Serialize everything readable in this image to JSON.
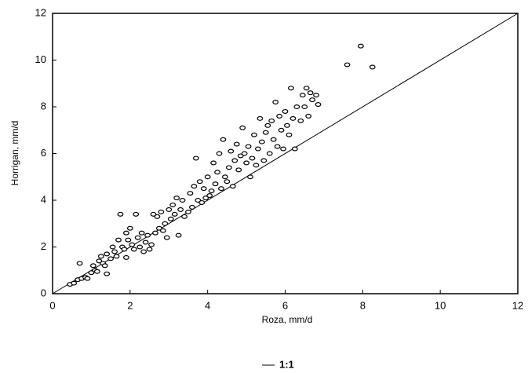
{
  "chart_data": {
    "type": "scatter",
    "x_label": "Roza, mm/d",
    "y_label": "Horrigan, mm/d",
    "xlim": [
      0,
      12
    ],
    "ylim": [
      0,
      12
    ],
    "xticks": [
      0,
      2,
      4,
      6,
      8,
      10,
      12
    ],
    "yticks": [
      0,
      2,
      4,
      6,
      8,
      10,
      12
    ],
    "points": {
      "color": "#000000",
      "x": [
        0.45,
        0.55,
        0.65,
        0.7,
        0.75,
        0.85,
        0.9,
        1.0,
        1.05,
        1.1,
        1.15,
        1.2,
        1.25,
        1.3,
        1.35,
        1.4,
        1.4,
        1.5,
        1.55,
        1.6,
        1.65,
        1.7,
        1.75,
        1.8,
        1.85,
        1.9,
        1.9,
        1.95,
        2.0,
        2.05,
        2.1,
        2.15,
        2.2,
        2.25,
        2.3,
        2.35,
        2.4,
        2.45,
        2.5,
        2.55,
        2.6,
        2.65,
        2.7,
        2.75,
        2.8,
        2.85,
        2.9,
        2.95,
        3.0,
        3.05,
        3.1,
        3.15,
        3.2,
        3.25,
        3.3,
        3.35,
        3.4,
        3.5,
        3.55,
        3.6,
        3.65,
        3.7,
        3.75,
        3.8,
        3.85,
        3.9,
        3.95,
        4.0,
        4.05,
        4.1,
        4.15,
        4.2,
        4.25,
        4.3,
        4.35,
        4.4,
        4.45,
        4.5,
        4.55,
        4.6,
        4.65,
        4.7,
        4.75,
        4.8,
        4.85,
        4.9,
        4.95,
        5.0,
        5.05,
        5.1,
        5.15,
        5.2,
        5.25,
        5.3,
        5.35,
        5.4,
        5.45,
        5.5,
        5.55,
        5.6,
        5.65,
        5.7,
        5.75,
        5.8,
        5.85,
        5.9,
        5.95,
        6.0,
        6.05,
        6.1,
        6.15,
        6.2,
        6.25,
        6.3,
        6.4,
        6.45,
        6.5,
        6.55,
        6.6,
        6.65,
        6.7,
        6.8,
        6.85,
        7.6,
        7.95,
        8.25
      ],
      "y": [
        0.4,
        0.45,
        0.6,
        1.3,
        0.65,
        0.7,
        0.65,
        0.9,
        1.2,
        1.0,
        0.95,
        1.4,
        1.6,
        1.3,
        1.2,
        0.85,
        1.7,
        1.5,
        2.0,
        1.8,
        1.6,
        2.3,
        3.4,
        2.0,
        1.9,
        2.6,
        1.55,
        2.3,
        2.8,
        2.1,
        1.9,
        3.4,
        2.4,
        2.0,
        2.6,
        1.8,
        2.2,
        2.5,
        1.9,
        2.1,
        3.4,
        2.6,
        3.3,
        2.8,
        3.5,
        2.7,
        3.0,
        2.4,
        3.6,
        3.2,
        3.8,
        3.4,
        4.1,
        2.5,
        3.6,
        4.0,
        3.3,
        3.5,
        4.3,
        3.7,
        4.6,
        5.8,
        4.0,
        4.8,
        3.9,
        4.5,
        4.1,
        5.0,
        4.2,
        4.4,
        5.6,
        4.7,
        5.2,
        6.0,
        4.5,
        6.6,
        5.0,
        4.8,
        5.4,
        6.1,
        4.6,
        5.7,
        6.4,
        5.3,
        5.9,
        7.1,
        6.0,
        5.6,
        6.3,
        5.0,
        5.8,
        6.8,
        5.5,
        6.2,
        7.5,
        6.5,
        5.7,
        6.9,
        7.2,
        6.0,
        7.4,
        6.6,
        8.2,
        6.3,
        7.6,
        7.0,
        6.2,
        7.8,
        7.2,
        6.8,
        8.8,
        7.5,
        6.2,
        8.0,
        7.4,
        8.5,
        8.0,
        8.8,
        7.6,
        8.6,
        8.3,
        8.5,
        8.1,
        9.8,
        10.6,
        9.7
      ]
    },
    "reference_line": {
      "name": "1:1",
      "color": "#000000",
      "x": [
        0,
        12
      ],
      "y": [
        0,
        12
      ]
    }
  }
}
